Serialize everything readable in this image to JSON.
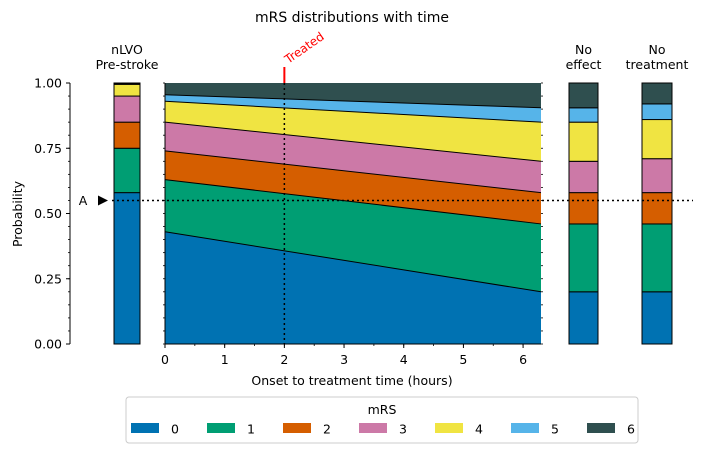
{
  "chart_data": {
    "type": "area",
    "title": "mRS distributions with time",
    "xlabel": "Onset to treatment time (hours)",
    "ylabel": "Probability",
    "xlim": [
      0,
      6.3
    ],
    "ylim": [
      0,
      1
    ],
    "x_ticks": [
      "0",
      "1",
      "2",
      "3",
      "4",
      "5",
      "6"
    ],
    "y_ticks": [
      "0.00",
      "0.25",
      "0.50",
      "0.75",
      "1.00"
    ],
    "grid": false,
    "legend_title": "mRS",
    "legend_placement": "bottom",
    "categories": [
      "0",
      "1",
      "2",
      "3",
      "4",
      "5",
      "6"
    ],
    "colors": [
      "#0072b2",
      "#009e73",
      "#d55e00",
      "#cc79a7",
      "#f0e442",
      "#56b4e9",
      "#2f4f4f"
    ],
    "x": [
      0,
      6.3
    ],
    "cumulative_boundaries": [
      {
        "upper_of": "0",
        "values": [
          0.43,
          0.2
        ]
      },
      {
        "upper_of": "1",
        "values": [
          0.63,
          0.46
        ]
      },
      {
        "upper_of": "2",
        "values": [
          0.74,
          0.58
        ]
      },
      {
        "upper_of": "3",
        "values": [
          0.85,
          0.7
        ]
      },
      {
        "upper_of": "4",
        "values": [
          0.93,
          0.85
        ]
      },
      {
        "upper_of": "5",
        "values": [
          0.955,
          0.905
        ]
      }
    ],
    "bars": [
      {
        "label": "nLVO\nPre-stroke",
        "cumulative": [
          0.58,
          0.75,
          0.85,
          0.95,
          0.995,
          0.997,
          1.0
        ]
      },
      {
        "label": "No\neffect",
        "cumulative": [
          0.2,
          0.46,
          0.58,
          0.7,
          0.85,
          0.905,
          1.0
        ]
      },
      {
        "label": "No\ntreatment",
        "cumulative": [
          0.2,
          0.46,
          0.58,
          0.71,
          0.86,
          0.92,
          1.0
        ]
      }
    ],
    "treated_time": 2,
    "treated_label": "Treated",
    "marker_label": "A",
    "marker_value": 0.55
  }
}
